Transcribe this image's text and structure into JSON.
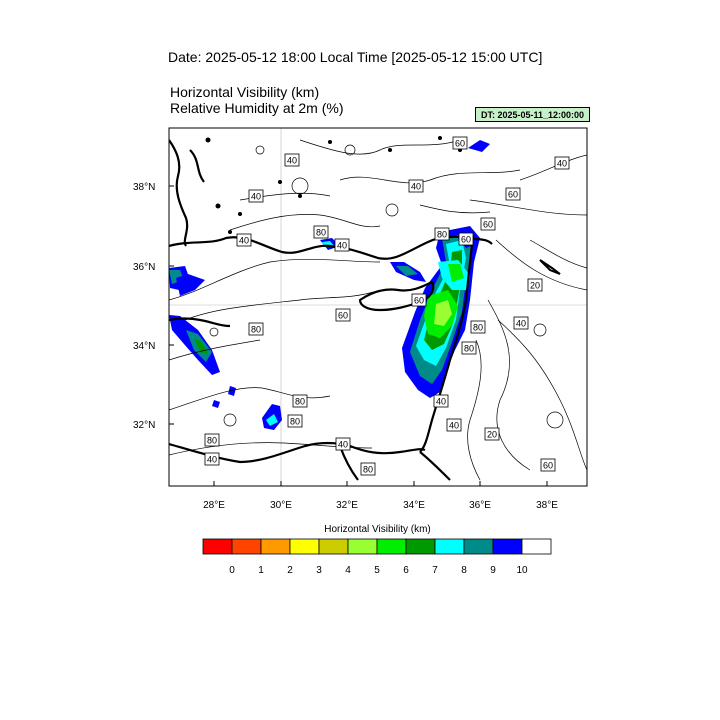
{
  "header": {
    "date_line": "Date: 2025-05-12  18:00 Local Time [2025-05-12  15:00 UTC]",
    "variable_1": "Horizontal Visibility   (km)",
    "variable_2": "Relative Humidity at 2m   (%)",
    "dt_badge": "DT: 2025-05-11_12:00:00"
  },
  "map": {
    "lat_labels": [
      "38°N",
      "36°N",
      "34°N",
      "32°N"
    ],
    "lon_labels": [
      "28°E",
      "30°E",
      "32°E",
      "34°E",
      "36°E",
      "38°E"
    ],
    "contour_labels": [
      "40",
      "60",
      "40",
      "40",
      "40",
      "60",
      "80",
      "40",
      "40",
      "60",
      "20",
      "40",
      "80",
      "60",
      "80",
      "60",
      "80",
      "80",
      "80",
      "40",
      "80",
      "40",
      "20",
      "60",
      "40",
      "80",
      "40",
      "80",
      "60"
    ]
  },
  "colorbar": {
    "title": "Horizontal Visibility  (km)",
    "ticks": [
      "0",
      "1",
      "2",
      "3",
      "4",
      "5",
      "6",
      "7",
      "8",
      "9",
      "10"
    ],
    "colors": [
      "#ff0000",
      "#ff4400",
      "#ff9900",
      "#ffff00",
      "#cccc00",
      "#99ff33",
      "#00ee00",
      "#009900",
      "#00ffff",
      "#008b8b",
      "#0000ff",
      "#ffffff"
    ]
  },
  "colors": {
    "background": "#ffffff",
    "land_outline": "#000000",
    "grid": "#bbbbbb"
  }
}
